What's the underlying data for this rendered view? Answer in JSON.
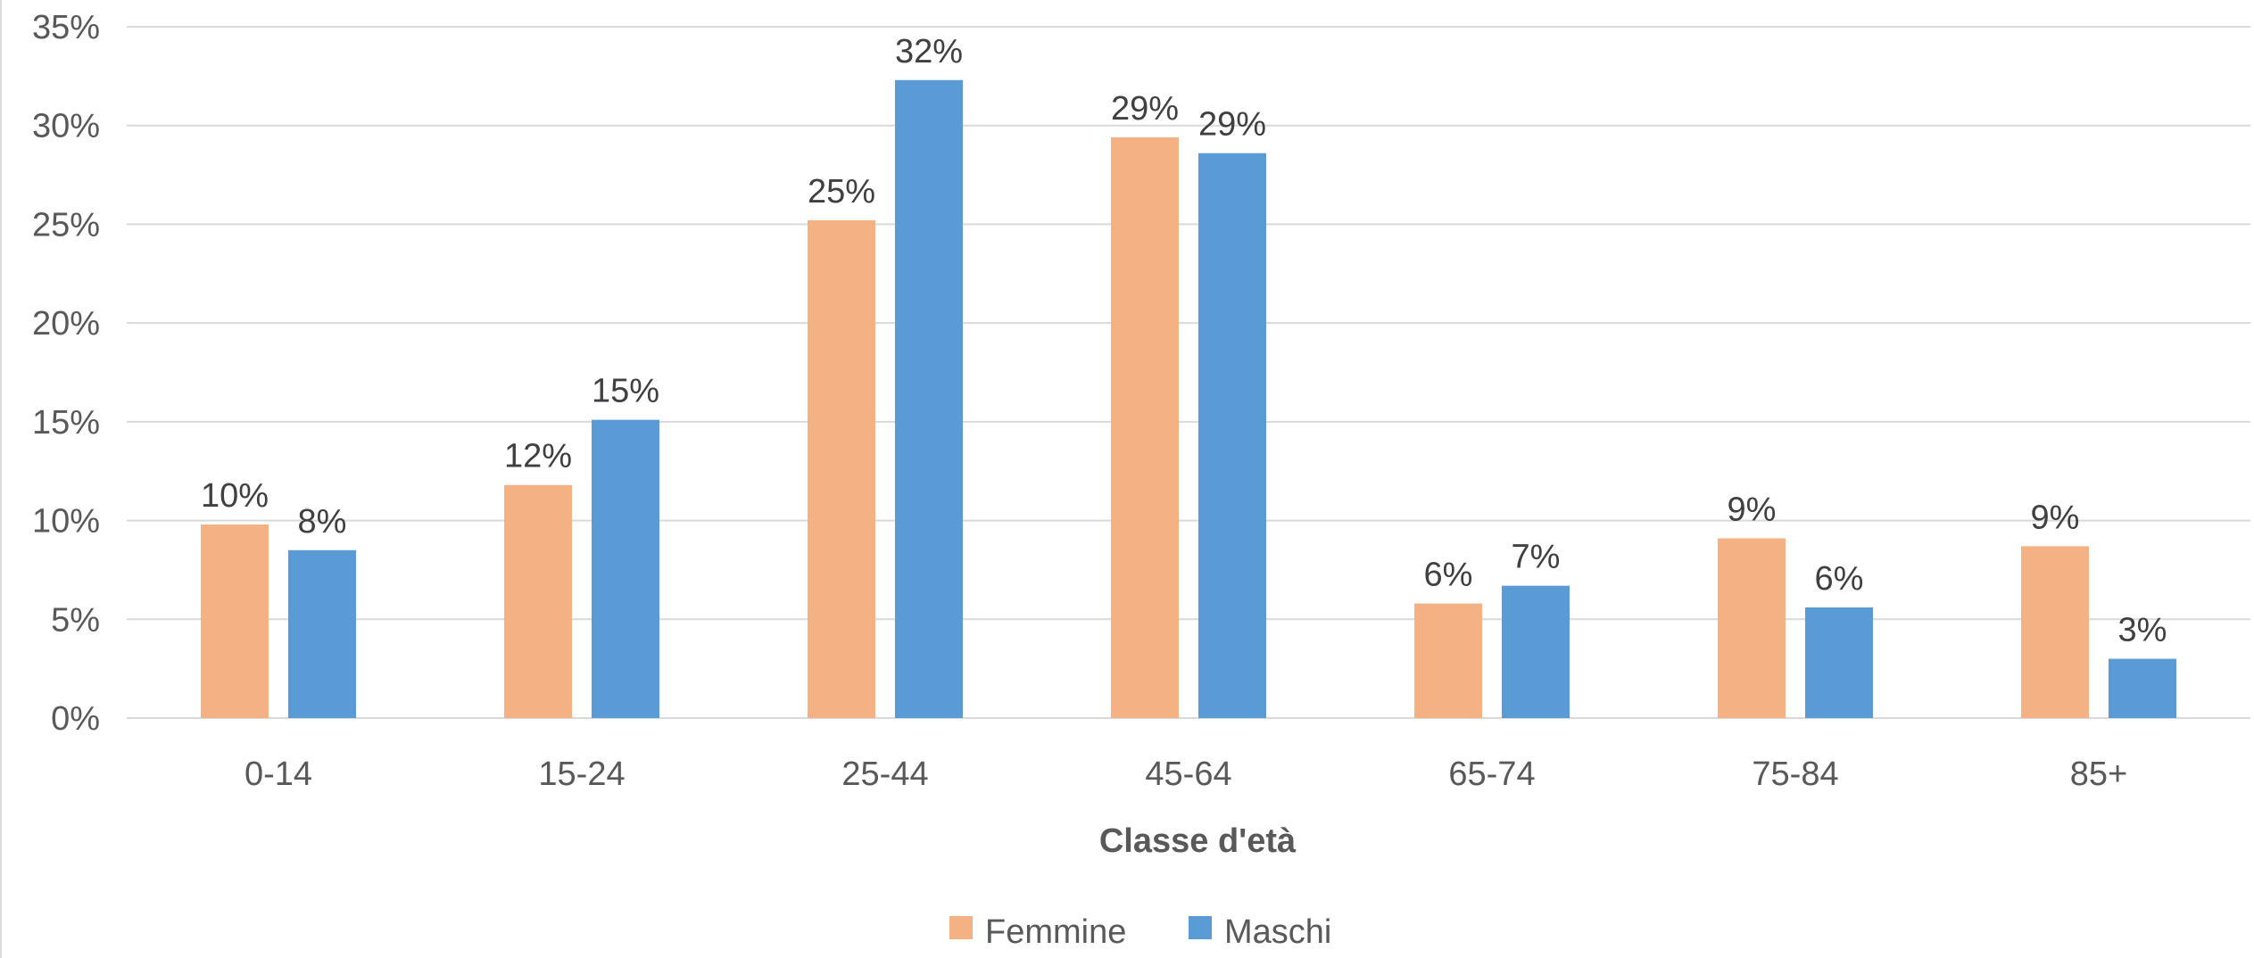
{
  "chart_data": {
    "type": "bar",
    "categories": [
      "0-14",
      "15-24",
      "25-44",
      "45-64",
      "65-74",
      "75-84",
      "85+"
    ],
    "series": [
      {
        "name": "Femmine",
        "color": "#f4b183",
        "values": [
          9.8,
          11.8,
          25.2,
          29.4,
          5.8,
          9.1,
          8.7
        ],
        "labels": [
          "10%",
          "12%",
          "25%",
          "29%",
          "6%",
          "9%",
          "9%"
        ]
      },
      {
        "name": "Maschi",
        "color": "#5b9bd5",
        "values": [
          8.5,
          15.1,
          32.3,
          28.6,
          6.7,
          5.6,
          3.0
        ],
        "labels": [
          "8%",
          "15%",
          "32%",
          "29%",
          "7%",
          "6%",
          "3%"
        ]
      }
    ],
    "xlabel": "Classe d'età",
    "ylabel": "",
    "ylim": [
      0,
      35
    ],
    "yticks": [
      0,
      5,
      10,
      15,
      20,
      25,
      30,
      35
    ],
    "ytick_labels": [
      "0%",
      "5%",
      "10%",
      "15%",
      "20%",
      "25%",
      "30%",
      "35%"
    ],
    "grid": true,
    "legend_position": "bottom-center"
  }
}
